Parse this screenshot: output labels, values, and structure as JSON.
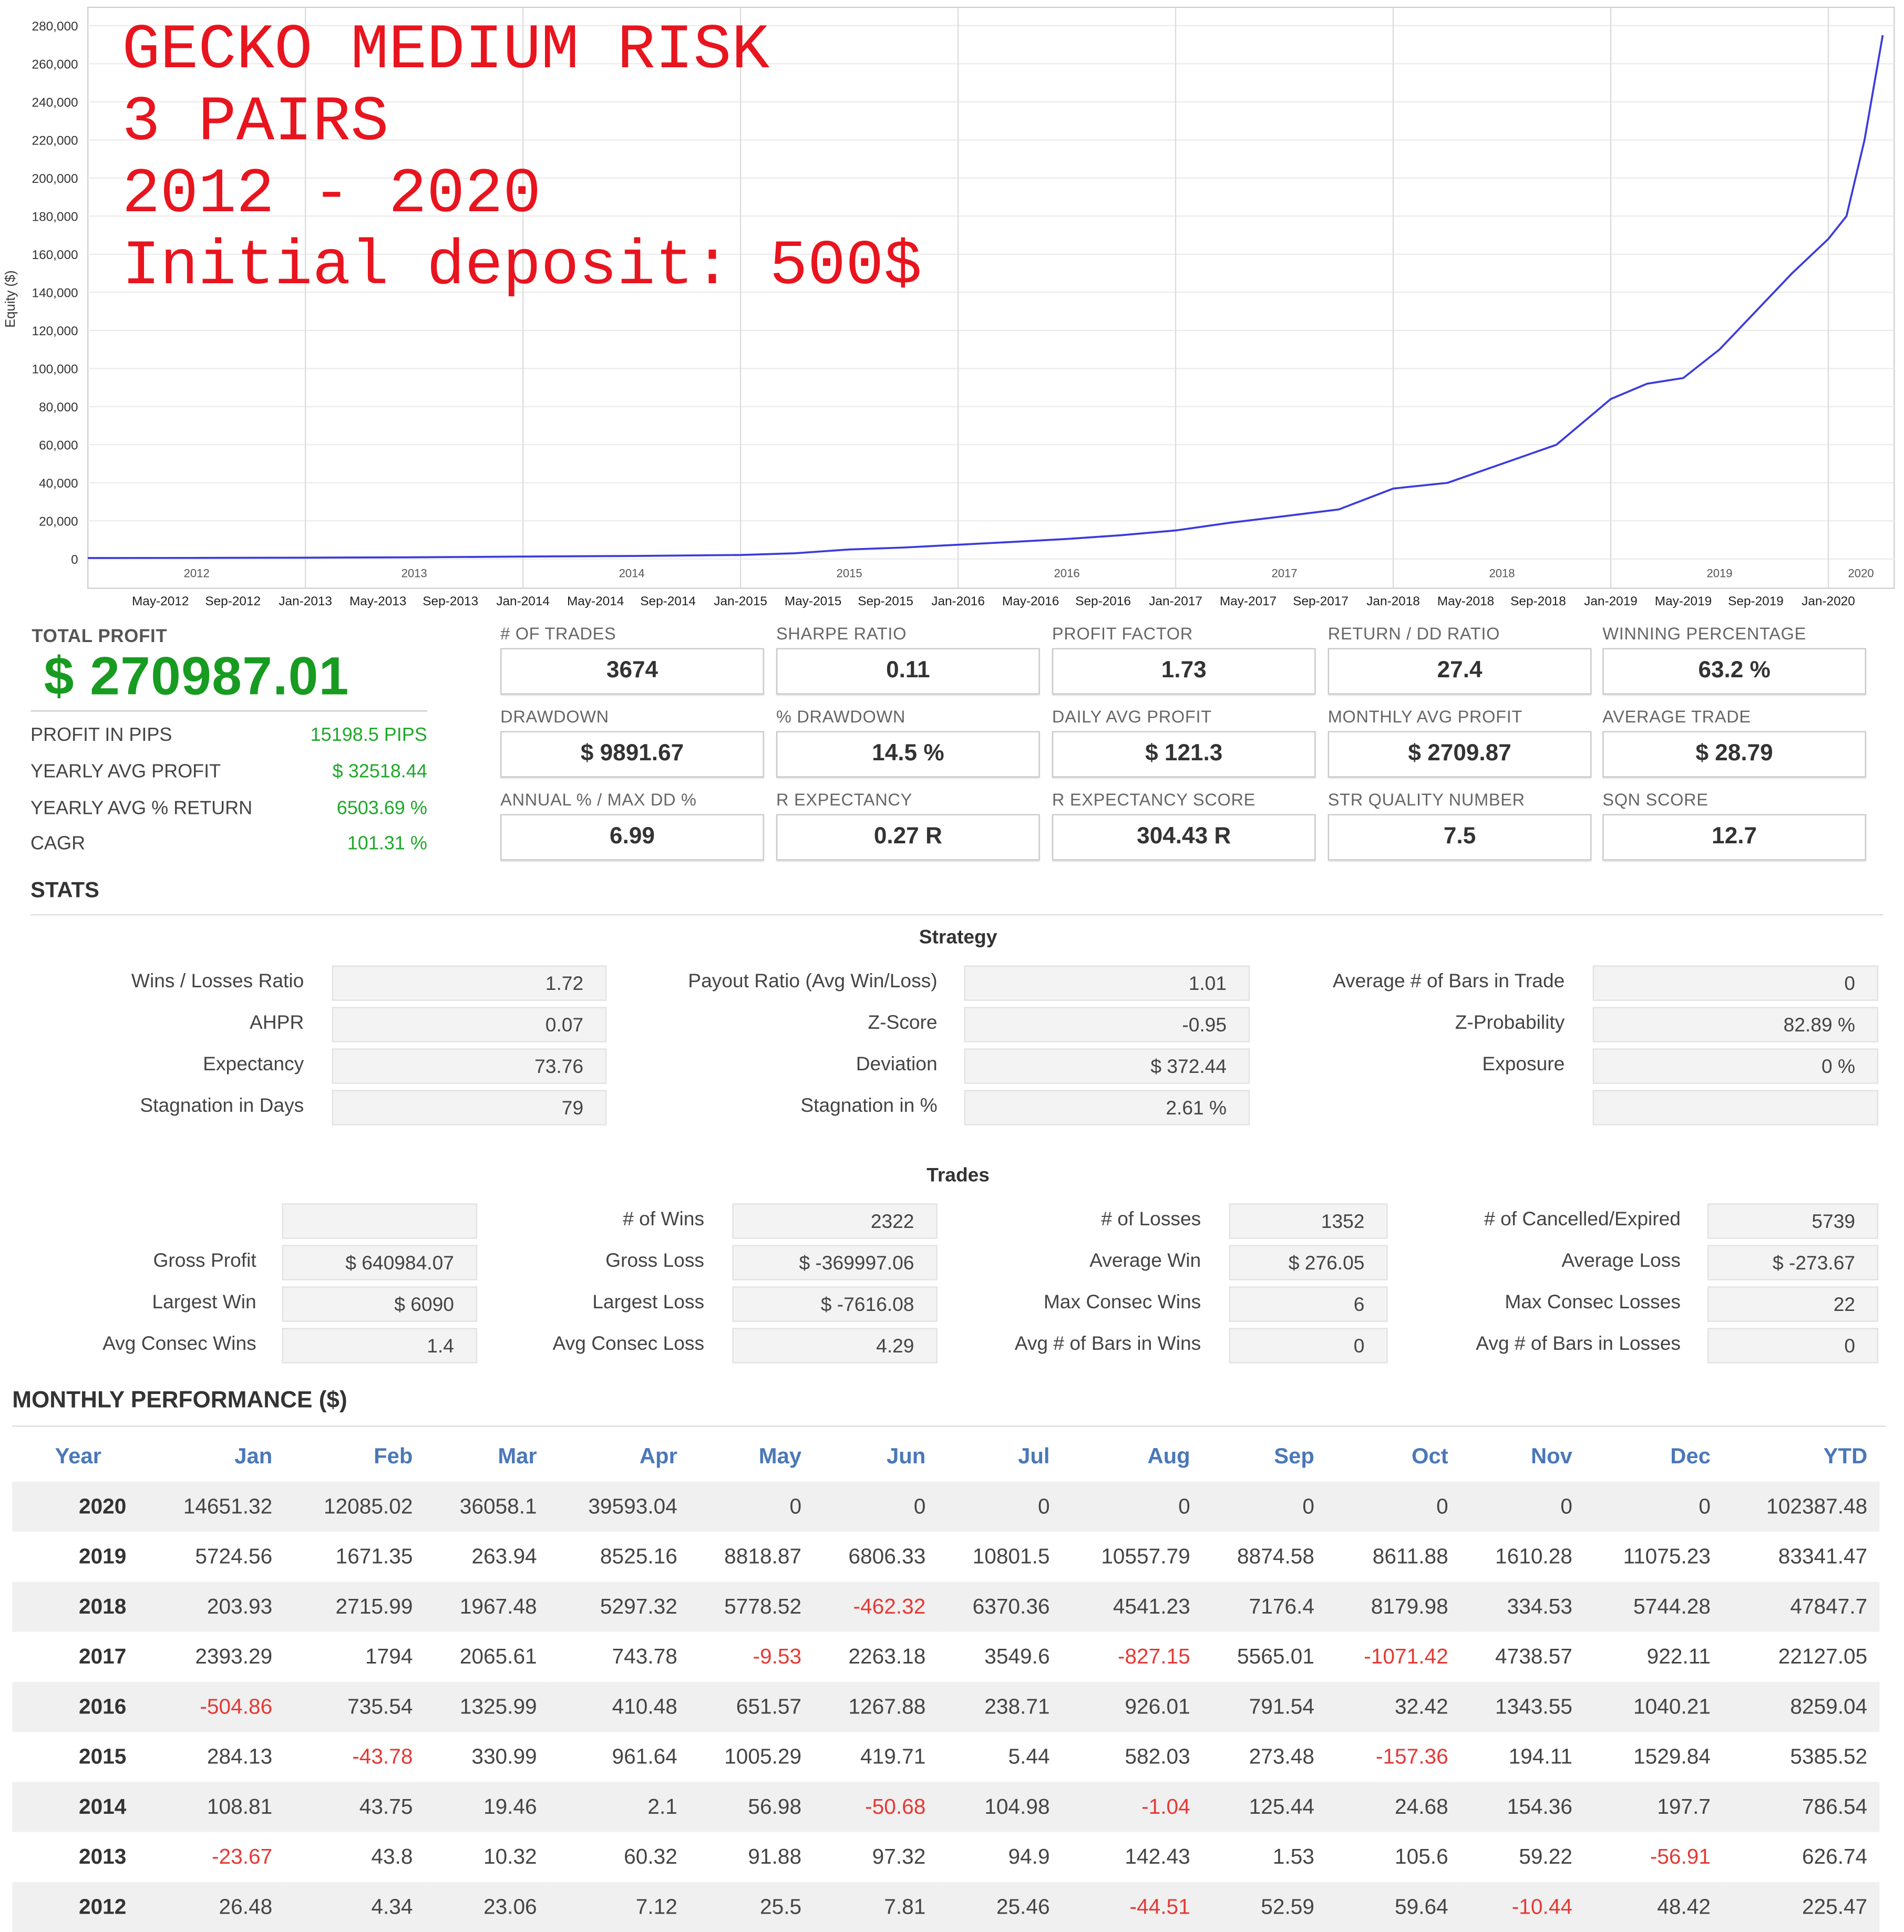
{
  "chart_data": {
    "type": "line",
    "title": "",
    "xlabel": "",
    "ylabel": "Equity ($)",
    "ylim": [
      0,
      280000
    ],
    "y_ticks": [
      0,
      20000,
      40000,
      60000,
      80000,
      100000,
      120000,
      140000,
      160000,
      180000,
      200000,
      220000,
      240000,
      260000,
      280000
    ],
    "y_tick_labels": [
      "0",
      "20,000",
      "40,000",
      "60,000",
      "80,000",
      "100,000",
      "120,000",
      "140,000",
      "160,000",
      "180,000",
      "200,000",
      "220,000",
      "240,000",
      "260,000",
      "280,000"
    ],
    "year_labels": [
      "2012",
      "2013",
      "2014",
      "2015",
      "2016",
      "2017",
      "2018",
      "2019",
      "2020"
    ],
    "month_labels": [
      "May-2012",
      "Sep-2012",
      "Jan-2013",
      "May-2013",
      "Sep-2013",
      "Jan-2014",
      "May-2014",
      "Sep-2014",
      "Jan-2015",
      "May-2015",
      "Sep-2015",
      "Jan-2016",
      "May-2016",
      "Sep-2016",
      "Jan-2017",
      "May-2017",
      "Sep-2017",
      "Jan-2018",
      "May-2018",
      "Sep-2018",
      "Jan-2019",
      "May-2019",
      "Sep-2019",
      "Jan-2020"
    ],
    "grid": true,
    "line_color": "#3b3bdf",
    "series": [
      {
        "x": [
          "2012-01",
          "2012-07",
          "2013-01",
          "2013-07",
          "2014-01",
          "2014-07",
          "2015-01",
          "2015-04",
          "2015-07",
          "2015-10",
          "2016-01",
          "2016-04",
          "2016-07",
          "2016-10",
          "2017-01",
          "2017-04",
          "2017-07",
          "2017-10",
          "2018-01",
          "2018-04",
          "2018-07",
          "2018-10",
          "2019-01",
          "2019-03",
          "2019-05",
          "2019-07",
          "2019-09",
          "2019-11",
          "2020-01",
          "2020-02",
          "2020-03",
          "2020-04"
        ],
        "values": [
          500,
          600,
          700,
          900,
          1300,
          1600,
          2100,
          3000,
          5000,
          6000,
          7500,
          9000,
          10500,
          12500,
          15000,
          19000,
          22500,
          26000,
          37000,
          40000,
          50000,
          60000,
          84000,
          92000,
          95000,
          110000,
          130000,
          150000,
          168000,
          180000,
          220000,
          275000
        ]
      }
    ]
  },
  "overlay": {
    "line1": "GECKO MEDIUM RISK",
    "line2": "3 PAIRS",
    "line3": "2012 - 2020",
    "line4": "Initial deposit: 500$",
    "color": "#e8141e"
  },
  "summary": {
    "total_profit_label": "TOTAL PROFIT",
    "total_profit_value": "$ 270987.01",
    "rows": [
      {
        "label": "PROFIT IN PIPS",
        "value": "15198.5 PIPS"
      },
      {
        "label": "YEARLY AVG PROFIT",
        "value": "$ 32518.44"
      },
      {
        "label": "YEARLY AVG % RETURN",
        "value": "6503.69 %"
      },
      {
        "label": "CAGR",
        "value": "101.31 %"
      }
    ]
  },
  "metrics": [
    {
      "label": "# OF TRADES",
      "value": "3674"
    },
    {
      "label": "SHARPE RATIO",
      "value": "0.11"
    },
    {
      "label": "PROFIT FACTOR",
      "value": "1.73"
    },
    {
      "label": "RETURN / DD RATIO",
      "value": "27.4"
    },
    {
      "label": "WINNING PERCENTAGE",
      "value": "63.2 %"
    },
    {
      "label": "DRAWDOWN",
      "value": "$ 9891.67"
    },
    {
      "label": "% DRAWDOWN",
      "value": "14.5 %"
    },
    {
      "label": "DAILY AVG PROFIT",
      "value": "$ 121.3"
    },
    {
      "label": "MONTHLY AVG PROFIT",
      "value": "$ 2709.87"
    },
    {
      "label": "AVERAGE TRADE",
      "value": "$ 28.79"
    },
    {
      "label": "ANNUAL % / MAX DD %",
      "value": "6.99"
    },
    {
      "label": "R EXPECTANCY",
      "value": "0.27 R"
    },
    {
      "label": "R EXPECTANCY SCORE",
      "value": "304.43 R"
    },
    {
      "label": "STR QUALITY NUMBER",
      "value": "7.5"
    },
    {
      "label": "SQN SCORE",
      "value": "12.7"
    }
  ],
  "stats": {
    "title": "STATS",
    "strategy": {
      "title": "Strategy",
      "rows": [
        [
          {
            "label": "Wins / Losses Ratio",
            "value": "1.72"
          },
          {
            "label": "Payout Ratio (Avg Win/Loss)",
            "value": "1.01"
          },
          {
            "label": "Average # of Bars in Trade",
            "value": "0"
          }
        ],
        [
          {
            "label": "AHPR",
            "value": "0.07"
          },
          {
            "label": "Z-Score",
            "value": "-0.95"
          },
          {
            "label": "Z-Probability",
            "value": "82.89 %"
          }
        ],
        [
          {
            "label": "Expectancy",
            "value": "73.76"
          },
          {
            "label": "Deviation",
            "value": "$ 372.44"
          },
          {
            "label": "Exposure",
            "value": "0 %"
          }
        ],
        [
          {
            "label": "Stagnation in Days",
            "value": "79"
          },
          {
            "label": "Stagnation in %",
            "value": "2.61 %"
          },
          {
            "label": "",
            "value": ""
          }
        ]
      ]
    },
    "trades": {
      "title": "Trades",
      "rows": [
        [
          {
            "label": "",
            "value": ""
          },
          {
            "label": "# of Wins",
            "value": "2322"
          },
          {
            "label": "# of Losses",
            "value": "1352"
          },
          {
            "label": "# of Cancelled/Expired",
            "value": "5739"
          }
        ],
        [
          {
            "label": "Gross Profit",
            "value": "$ 640984.07"
          },
          {
            "label": "Gross Loss",
            "value": "$ -369997.06"
          },
          {
            "label": "Average Win",
            "value": "$ 276.05"
          },
          {
            "label": "Average Loss",
            "value": "$ -273.67"
          }
        ],
        [
          {
            "label": "Largest Win",
            "value": "$ 6090"
          },
          {
            "label": "Largest Loss",
            "value": "$ -7616.08"
          },
          {
            "label": "Max Consec Wins",
            "value": "6"
          },
          {
            "label": "Max Consec Losses",
            "value": "22"
          }
        ],
        [
          {
            "label": "Avg Consec Wins",
            "value": "1.4"
          },
          {
            "label": "Avg Consec Loss",
            "value": "4.29"
          },
          {
            "label": "Avg # of Bars in Wins",
            "value": "0"
          },
          {
            "label": "Avg # of Bars in Losses",
            "value": "0"
          }
        ]
      ]
    }
  },
  "monthly": {
    "title": "MONTHLY PERFORMANCE ($)",
    "headers": [
      "Year",
      "Jan",
      "Feb",
      "Mar",
      "Apr",
      "May",
      "Jun",
      "Jul",
      "Aug",
      "Sep",
      "Oct",
      "Nov",
      "Dec",
      "YTD"
    ],
    "rows": [
      [
        "2020",
        "14651.32",
        "12085.02",
        "36058.1",
        "39593.04",
        "0",
        "0",
        "0",
        "0",
        "0",
        "0",
        "0",
        "0",
        "102387.48"
      ],
      [
        "2019",
        "5724.56",
        "1671.35",
        "263.94",
        "8525.16",
        "8818.87",
        "6806.33",
        "10801.5",
        "10557.79",
        "8874.58",
        "8611.88",
        "1610.28",
        "11075.23",
        "83341.47"
      ],
      [
        "2018",
        "203.93",
        "2715.99",
        "1967.48",
        "5297.32",
        "5778.52",
        "-462.32",
        "6370.36",
        "4541.23",
        "7176.4",
        "8179.98",
        "334.53",
        "5744.28",
        "47847.7"
      ],
      [
        "2017",
        "2393.29",
        "1794",
        "2065.61",
        "743.78",
        "-9.53",
        "2263.18",
        "3549.6",
        "-827.15",
        "5565.01",
        "-1071.42",
        "4738.57",
        "922.11",
        "22127.05"
      ],
      [
        "2016",
        "-504.86",
        "735.54",
        "1325.99",
        "410.48",
        "651.57",
        "1267.88",
        "238.71",
        "926.01",
        "791.54",
        "32.42",
        "1343.55",
        "1040.21",
        "8259.04"
      ],
      [
        "2015",
        "284.13",
        "-43.78",
        "330.99",
        "961.64",
        "1005.29",
        "419.71",
        "5.44",
        "582.03",
        "273.48",
        "-157.36",
        "194.11",
        "1529.84",
        "5385.52"
      ],
      [
        "2014",
        "108.81",
        "43.75",
        "19.46",
        "2.1",
        "56.98",
        "-50.68",
        "104.98",
        "-1.04",
        "125.44",
        "24.68",
        "154.36",
        "197.7",
        "786.54"
      ],
      [
        "2013",
        "-23.67",
        "43.8",
        "10.32",
        "60.32",
        "91.88",
        "97.32",
        "94.9",
        "142.43",
        "1.53",
        "105.6",
        "59.22",
        "-56.91",
        "626.74"
      ],
      [
        "2012",
        "26.48",
        "4.34",
        "23.06",
        "7.12",
        "25.5",
        "7.81",
        "25.46",
        "-44.51",
        "52.59",
        "59.64",
        "-10.44",
        "48.42",
        "225.47"
      ]
    ]
  }
}
